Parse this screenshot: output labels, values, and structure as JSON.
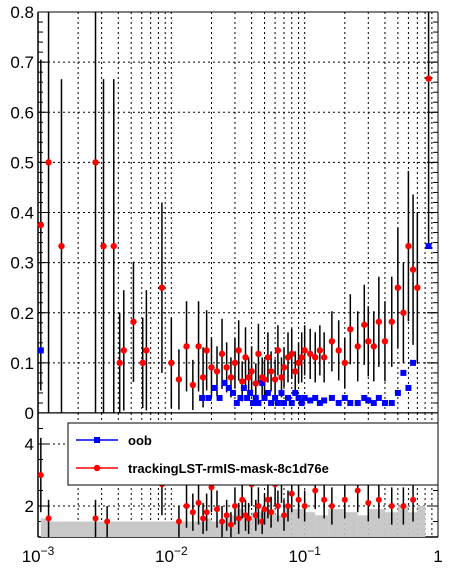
{
  "chart_data": [
    {
      "type": "scatter",
      "panel": "main",
      "x_scale": "log",
      "xlim": [
        0.001,
        1
      ],
      "ylim": [
        0,
        0.8
      ],
      "grid": true,
      "y_ticks": [
        "0",
        "0.1",
        "0.2",
        "0.3",
        "0.4",
        "0.5",
        "0.6",
        "0.7",
        "0.8"
      ],
      "series": [
        {
          "name": "oob",
          "color": "#0000ff",
          "marker": "square",
          "points": [
            [
              0.00105,
              0.125
            ],
            [
              0.017,
              0.03
            ],
            [
              0.019,
              0.03
            ],
            [
              0.021,
              0.05
            ],
            [
              0.023,
              0.03
            ],
            [
              0.025,
              0.06
            ],
            [
              0.027,
              0.05
            ],
            [
              0.029,
              0.04
            ],
            [
              0.031,
              0.02
            ],
            [
              0.033,
              0.03
            ],
            [
              0.035,
              0.05
            ],
            [
              0.037,
              0.03
            ],
            [
              0.039,
              0.04
            ],
            [
              0.041,
              0.02
            ],
            [
              0.043,
              0.03
            ],
            [
              0.045,
              0.02
            ],
            [
              0.048,
              0.06
            ],
            [
              0.05,
              0.03
            ],
            [
              0.053,
              0.04
            ],
            [
              0.056,
              0.02
            ],
            [
              0.06,
              0.03
            ],
            [
              0.063,
              0.02
            ],
            [
              0.067,
              0.04
            ],
            [
              0.07,
              0.02
            ],
            [
              0.075,
              0.03
            ],
            [
              0.08,
              0.02
            ],
            [
              0.085,
              0.04
            ],
            [
              0.09,
              0.03
            ],
            [
              0.095,
              0.02
            ],
            [
              0.1,
              0.03
            ],
            [
              0.11,
              0.025
            ],
            [
              0.12,
              0.03
            ],
            [
              0.13,
              0.02
            ],
            [
              0.14,
              0.025
            ],
            [
              0.16,
              0.03
            ],
            [
              0.18,
              0.02
            ],
            [
              0.2,
              0.03
            ],
            [
              0.22,
              0.02
            ],
            [
              0.25,
              0.02
            ],
            [
              0.28,
              0.03
            ],
            [
              0.3,
              0.025
            ],
            [
              0.33,
              0.02
            ],
            [
              0.36,
              0.03
            ],
            [
              0.4,
              0.02
            ],
            [
              0.45,
              0.02
            ],
            [
              0.5,
              0.04
            ],
            [
              0.55,
              0.08
            ],
            [
              0.6,
              0.05
            ],
            [
              0.65,
              0.1
            ],
            [
              0.85,
              0.333
            ]
          ]
        },
        {
          "name": "trackingLST-rmIS-mask-8c1d76e",
          "color": "#ff0000",
          "marker": "circle",
          "points": [
            [
              0.00105,
              0.375,
              0.33
            ],
            [
              0.0012,
              0.5,
              0.5
            ],
            [
              0.0015,
              0.333,
              0.333
            ],
            [
              0.0027,
              0.5,
              0.5
            ],
            [
              0.0031,
              0.333,
              0.333
            ],
            [
              0.0037,
              0.333,
              0.333
            ],
            [
              0.0041,
              0.1,
              0.1
            ],
            [
              0.0044,
              0.125,
              0.12
            ],
            [
              0.0052,
              0.182,
              0.12
            ],
            [
              0.0061,
              0.1,
              0.09
            ],
            [
              0.0065,
              0.125,
              0.12
            ],
            [
              0.0085,
              0.25,
              0.17
            ],
            [
              0.01,
              0.1,
              0.09
            ],
            [
              0.0114,
              0.067,
              0.06
            ],
            [
              0.013,
              0.133,
              0.09
            ],
            [
              0.0145,
              0.056,
              0.05
            ],
            [
              0.016,
              0.133,
              0.09
            ],
            [
              0.0173,
              0.071,
              0.06
            ],
            [
              0.0184,
              0.125,
              0.08
            ],
            [
              0.02,
              0.091,
              0.06
            ],
            [
              0.022,
              0.083,
              0.05
            ],
            [
              0.024,
              0.118,
              0.07
            ],
            [
              0.026,
              0.091,
              0.05
            ],
            [
              0.028,
              0.071,
              0.04
            ],
            [
              0.03,
              0.1,
              0.05
            ],
            [
              0.032,
              0.125,
              0.06
            ],
            [
              0.034,
              0.063,
              0.04
            ],
            [
              0.036,
              0.111,
              0.06
            ],
            [
              0.038,
              0.071,
              0.04
            ],
            [
              0.04,
              0.083,
              0.05
            ],
            [
              0.043,
              0.059,
              0.04
            ],
            [
              0.045,
              0.118,
              0.06
            ],
            [
              0.048,
              0.071,
              0.04
            ],
            [
              0.05,
              0.067,
              0.04
            ],
            [
              0.053,
              0.111,
              0.05
            ],
            [
              0.056,
              0.083,
              0.04
            ],
            [
              0.06,
              0.067,
              0.04
            ],
            [
              0.063,
              0.125,
              0.05
            ],
            [
              0.067,
              0.071,
              0.04
            ],
            [
              0.07,
              0.091,
              0.04
            ],
            [
              0.075,
              0.111,
              0.05
            ],
            [
              0.08,
              0.118,
              0.05
            ],
            [
              0.085,
              0.083,
              0.04
            ],
            [
              0.09,
              0.1,
              0.04
            ],
            [
              0.095,
              0.111,
              0.05
            ],
            [
              0.1,
              0.125,
              0.05
            ],
            [
              0.11,
              0.118,
              0.05
            ],
            [
              0.12,
              0.111,
              0.05
            ],
            [
              0.13,
              0.125,
              0.05
            ],
            [
              0.14,
              0.111,
              0.05
            ],
            [
              0.16,
              0.143,
              0.06
            ],
            [
              0.18,
              0.125,
              0.06
            ],
            [
              0.2,
              0.1,
              0.05
            ],
            [
              0.22,
              0.167,
              0.07
            ],
            [
              0.25,
              0.133,
              0.07
            ],
            [
              0.28,
              0.176,
              0.08
            ],
            [
              0.3,
              0.143,
              0.07
            ],
            [
              0.33,
              0.133,
              0.07
            ],
            [
              0.36,
              0.182,
              0.09
            ],
            [
              0.4,
              0.143,
              0.08
            ],
            [
              0.45,
              0.182,
              0.09
            ],
            [
              0.5,
              0.25,
              0.12
            ],
            [
              0.55,
              0.2,
              0.1
            ],
            [
              0.6,
              0.333,
              0.15
            ],
            [
              0.65,
              0.286,
              0.15
            ],
            [
              0.7,
              0.25,
              0.15
            ],
            [
              0.85,
              0.667,
              0.33
            ]
          ]
        }
      ]
    },
    {
      "type": "bar",
      "panel": "ratio",
      "x_scale": "log",
      "xlim": [
        0.001,
        1
      ],
      "ylim": [
        1,
        5
      ],
      "grid": true,
      "x_ticks": [
        {
          "base": "10",
          "exp": "−3"
        },
        {
          "base": "10",
          "exp": "−2"
        },
        {
          "base": "10",
          "exp": "−1"
        },
        {
          "base": "1",
          "exp": ""
        }
      ],
      "y_ticks": [
        "2",
        "4"
      ],
      "series": [
        {
          "name": "ratio",
          "color": "#000000",
          "points": [
            [
              0.00105,
              3.0,
              1.2
            ],
            [
              0.0012,
              1.6,
              0.6
            ],
            [
              0.0027,
              1.6,
              0.6
            ],
            [
              0.0033,
              1.5,
              0.5
            ],
            [
              0.0085,
              2.7,
              1.0
            ],
            [
              0.0114,
              1.5,
              0.5
            ],
            [
              0.013,
              2.0,
              0.7
            ],
            [
              0.0145,
              1.8,
              0.6
            ],
            [
              0.016,
              2.1,
              0.7
            ],
            [
              0.0173,
              1.6,
              0.5
            ],
            [
              0.0184,
              1.8,
              0.6
            ],
            [
              0.02,
              2.6,
              0.8
            ],
            [
              0.022,
              1.9,
              0.6
            ],
            [
              0.024,
              1.5,
              0.5
            ],
            [
              0.026,
              1.7,
              0.5
            ],
            [
              0.028,
              1.4,
              0.4
            ],
            [
              0.03,
              2.0,
              0.6
            ],
            [
              0.032,
              1.6,
              0.5
            ],
            [
              0.034,
              2.2,
              0.6
            ],
            [
              0.036,
              1.7,
              0.5
            ],
            [
              0.038,
              1.6,
              0.5
            ],
            [
              0.04,
              2.7,
              0.7
            ],
            [
              0.043,
              1.7,
              0.5
            ],
            [
              0.045,
              2.0,
              0.6
            ],
            [
              0.048,
              1.5,
              0.4
            ],
            [
              0.05,
              1.9,
              0.5
            ],
            [
              0.053,
              2.2,
              0.6
            ],
            [
              0.056,
              1.8,
              0.5
            ],
            [
              0.06,
              2.7,
              0.7
            ],
            [
              0.063,
              2.0,
              0.5
            ],
            [
              0.067,
              2.9,
              0.8
            ],
            [
              0.07,
              1.7,
              0.5
            ],
            [
              0.075,
              2.0,
              0.5
            ],
            [
              0.08,
              2.4,
              0.6
            ],
            [
              0.09,
              2.2,
              0.6
            ],
            [
              0.1,
              2.0,
              0.5
            ],
            [
              0.12,
              2.5,
              0.6
            ],
            [
              0.14,
              2.2,
              0.6
            ],
            [
              0.16,
              2.0,
              0.6
            ],
            [
              0.2,
              2.2,
              0.6
            ],
            [
              0.25,
              2.5,
              0.7
            ],
            [
              0.3,
              2.1,
              0.6
            ],
            [
              0.36,
              2.2,
              0.6
            ],
            [
              0.45,
              2.0,
              0.6
            ],
            [
              0.55,
              2.0,
              0.6
            ],
            [
              0.65,
              2.2,
              0.7
            ]
          ]
        }
      ],
      "band": [
        [
          0.00105,
          1.6
        ],
        [
          0.0012,
          1.5
        ],
        [
          0.017,
          1.6
        ],
        [
          0.02,
          1.5
        ],
        [
          0.025,
          1.7
        ],
        [
          0.03,
          1.9
        ],
        [
          0.035,
          1.6
        ],
        [
          0.04,
          1.8
        ],
        [
          0.05,
          1.9
        ],
        [
          0.06,
          1.7
        ],
        [
          0.07,
          2.0
        ],
        [
          0.08,
          1.9
        ],
        [
          0.1,
          1.8
        ],
        [
          0.12,
          1.7
        ],
        [
          0.15,
          1.9
        ],
        [
          0.2,
          1.8
        ],
        [
          0.25,
          1.7
        ],
        [
          0.3,
          1.9
        ],
        [
          0.4,
          1.8
        ],
        [
          0.5,
          2.0
        ],
        [
          0.6,
          1.8
        ],
        [
          0.7,
          2.0
        ]
      ]
    }
  ],
  "legend": {
    "items": [
      {
        "label": "oob",
        "color": "#0000ff",
        "marker": "square"
      },
      {
        "label": "trackingLST-rmIS-mask-8c1d76e",
        "color": "#ff0000",
        "marker": "circle"
      }
    ]
  }
}
